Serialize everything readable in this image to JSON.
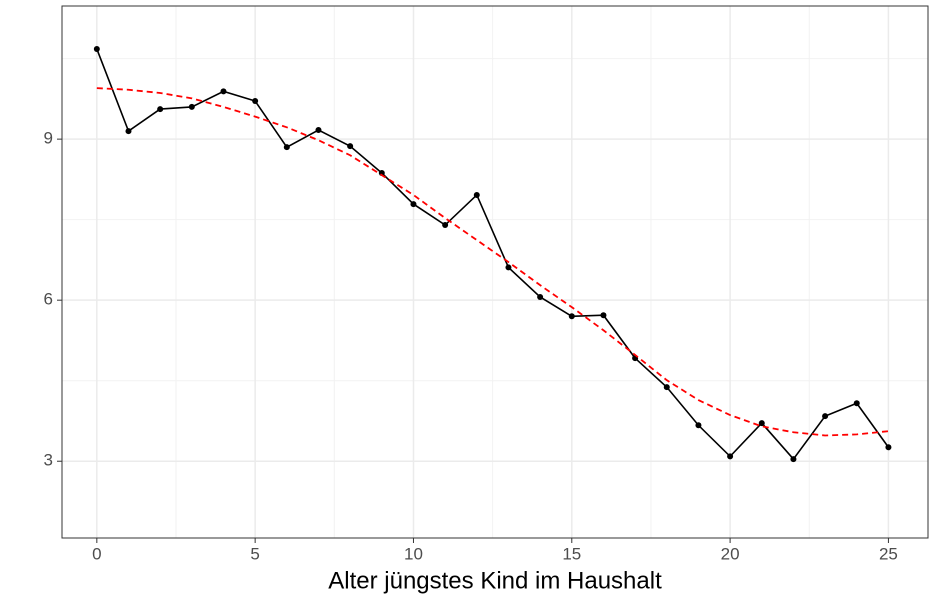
{
  "chart_data": {
    "type": "line",
    "x_label": "Alter jüngstes Kind im Haushalt",
    "x": [
      0,
      1,
      2,
      3,
      4,
      5,
      6,
      7,
      8,
      9,
      10,
      11,
      12,
      13,
      14,
      15,
      16,
      17,
      18,
      19,
      20,
      21,
      22,
      23,
      24,
      25
    ],
    "series": [
      {
        "color": "#000000",
        "style": "solid",
        "markers": true,
        "values": [
          10.68,
          9.15,
          9.56,
          9.6,
          9.89,
          9.71,
          8.85,
          9.17,
          8.87,
          8.37,
          7.79,
          7.4,
          7.96,
          6.61,
          6.06,
          5.7,
          5.72,
          4.92,
          4.38,
          3.67,
          3.09,
          3.71,
          3.04,
          3.84,
          4.08,
          3.26
        ]
      },
      {
        "color": "#ff0000",
        "style": "dashed",
        "markers": false,
        "values": [
          9.95,
          9.92,
          9.86,
          9.76,
          9.6,
          9.42,
          9.22,
          8.98,
          8.7,
          8.33,
          7.96,
          7.53,
          7.12,
          6.71,
          6.28,
          5.87,
          5.44,
          4.98,
          4.51,
          4.14,
          3.86,
          3.65,
          3.54,
          3.48,
          3.5,
          3.56
        ]
      }
    ],
    "xlim": [
      -1.1,
      26.25
    ],
    "ylim": [
      1.57,
      11.48
    ],
    "xticks": [
      0,
      5,
      10,
      15,
      20,
      25
    ],
    "yticks": [
      3,
      6,
      9
    ],
    "minor_xticks": [
      2.5,
      7.5,
      12.5,
      17.5,
      22.5
    ],
    "minor_yticks": [
      4.5,
      7.5,
      10.5
    ],
    "grid": true
  }
}
